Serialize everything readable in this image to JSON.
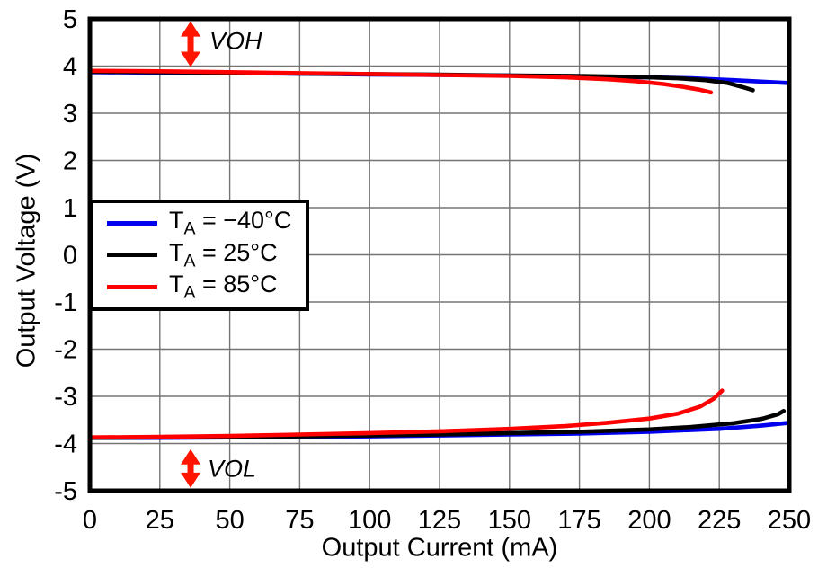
{
  "figure": {
    "background": "#ffffff",
    "axis_color": "#000000",
    "grid_color": "#757575"
  },
  "legend": {
    "entries": [
      {
        "prefix": "T",
        "sub": "A",
        "suffix": " = −40°C",
        "color": "#0000ee"
      },
      {
        "prefix": "T",
        "sub": "A",
        "suffix": " = 25°C",
        "color": "#000000"
      },
      {
        "prefix": "T",
        "sub": "A",
        "suffix": " = 85°C",
        "color": "#ff0000"
      }
    ]
  },
  "annotations": {
    "voh": {
      "label": "VOH",
      "x_ma": 36,
      "v_from": 4.95,
      "v_to": 3.98,
      "color": "#ff1500"
    },
    "vol": {
      "label": "VOL",
      "x_ma": 36,
      "v_from": -4.12,
      "v_to": -4.94,
      "color": "#ff1500"
    }
  },
  "chart_data": {
    "type": "line",
    "title": "",
    "xlabel": "Output Current (mA)",
    "ylabel": "Output Voltage (V)",
    "xlim": [
      0,
      250
    ],
    "ylim": [
      -5,
      5
    ],
    "xticks": [
      0,
      25,
      50,
      75,
      100,
      125,
      150,
      175,
      200,
      225,
      250
    ],
    "yticks": [
      5,
      4,
      3,
      2,
      1,
      0,
      -1,
      -2,
      -3,
      -4,
      -5
    ],
    "grid": true,
    "legend_position": "upper-left-inside",
    "series": [
      {
        "name": "VOH TA=-40C",
        "temp_c": -40,
        "color": "#0000ee",
        "points": [
          [
            0,
            3.87
          ],
          [
            25,
            3.86
          ],
          [
            50,
            3.85
          ],
          [
            75,
            3.84
          ],
          [
            100,
            3.82
          ],
          [
            125,
            3.81
          ],
          [
            150,
            3.8
          ],
          [
            175,
            3.78
          ],
          [
            200,
            3.76
          ],
          [
            215,
            3.74
          ],
          [
            230,
            3.7
          ],
          [
            240,
            3.67
          ],
          [
            250,
            3.64
          ]
        ]
      },
      {
        "name": "VOH TA=25C",
        "temp_c": 25,
        "color": "#000000",
        "points": [
          [
            0,
            3.88
          ],
          [
            25,
            3.87
          ],
          [
            50,
            3.86
          ],
          [
            75,
            3.84
          ],
          [
            100,
            3.83
          ],
          [
            125,
            3.82
          ],
          [
            150,
            3.8
          ],
          [
            175,
            3.79
          ],
          [
            195,
            3.77
          ],
          [
            210,
            3.74
          ],
          [
            220,
            3.7
          ],
          [
            228,
            3.64
          ],
          [
            233,
            3.56
          ],
          [
            237,
            3.49
          ]
        ]
      },
      {
        "name": "VOH TA=85C",
        "temp_c": 85,
        "color": "#ff0000",
        "points": [
          [
            0,
            3.9
          ],
          [
            25,
            3.89
          ],
          [
            50,
            3.87
          ],
          [
            75,
            3.85
          ],
          [
            100,
            3.83
          ],
          [
            125,
            3.81
          ],
          [
            150,
            3.79
          ],
          [
            170,
            3.76
          ],
          [
            185,
            3.72
          ],
          [
            195,
            3.68
          ],
          [
            205,
            3.62
          ],
          [
            212,
            3.56
          ],
          [
            218,
            3.5
          ],
          [
            222,
            3.44
          ]
        ]
      },
      {
        "name": "VOL TA=-40C",
        "temp_c": -40,
        "color": "#0000ee",
        "points": [
          [
            0,
            -3.88
          ],
          [
            25,
            -3.88
          ],
          [
            50,
            -3.87
          ],
          [
            75,
            -3.86
          ],
          [
            100,
            -3.85
          ],
          [
            125,
            -3.83
          ],
          [
            150,
            -3.81
          ],
          [
            175,
            -3.79
          ],
          [
            200,
            -3.75
          ],
          [
            225,
            -3.69
          ],
          [
            240,
            -3.62
          ],
          [
            250,
            -3.56
          ]
        ]
      },
      {
        "name": "VOL TA=25C",
        "temp_c": 25,
        "color": "#000000",
        "points": [
          [
            0,
            -3.88
          ],
          [
            25,
            -3.87
          ],
          [
            50,
            -3.86
          ],
          [
            75,
            -3.85
          ],
          [
            100,
            -3.83
          ],
          [
            125,
            -3.81
          ],
          [
            150,
            -3.78
          ],
          [
            175,
            -3.75
          ],
          [
            200,
            -3.7
          ],
          [
            215,
            -3.65
          ],
          [
            230,
            -3.57
          ],
          [
            240,
            -3.48
          ],
          [
            246,
            -3.38
          ],
          [
            248,
            -3.31
          ]
        ]
      },
      {
        "name": "VOL TA=85C",
        "temp_c": 85,
        "color": "#ff0000",
        "points": [
          [
            0,
            -3.87
          ],
          [
            25,
            -3.86
          ],
          [
            50,
            -3.84
          ],
          [
            75,
            -3.81
          ],
          [
            100,
            -3.78
          ],
          [
            125,
            -3.74
          ],
          [
            150,
            -3.69
          ],
          [
            170,
            -3.63
          ],
          [
            185,
            -3.56
          ],
          [
            200,
            -3.47
          ],
          [
            210,
            -3.37
          ],
          [
            218,
            -3.22
          ],
          [
            223,
            -3.05
          ],
          [
            226,
            -2.88
          ]
        ]
      }
    ]
  }
}
